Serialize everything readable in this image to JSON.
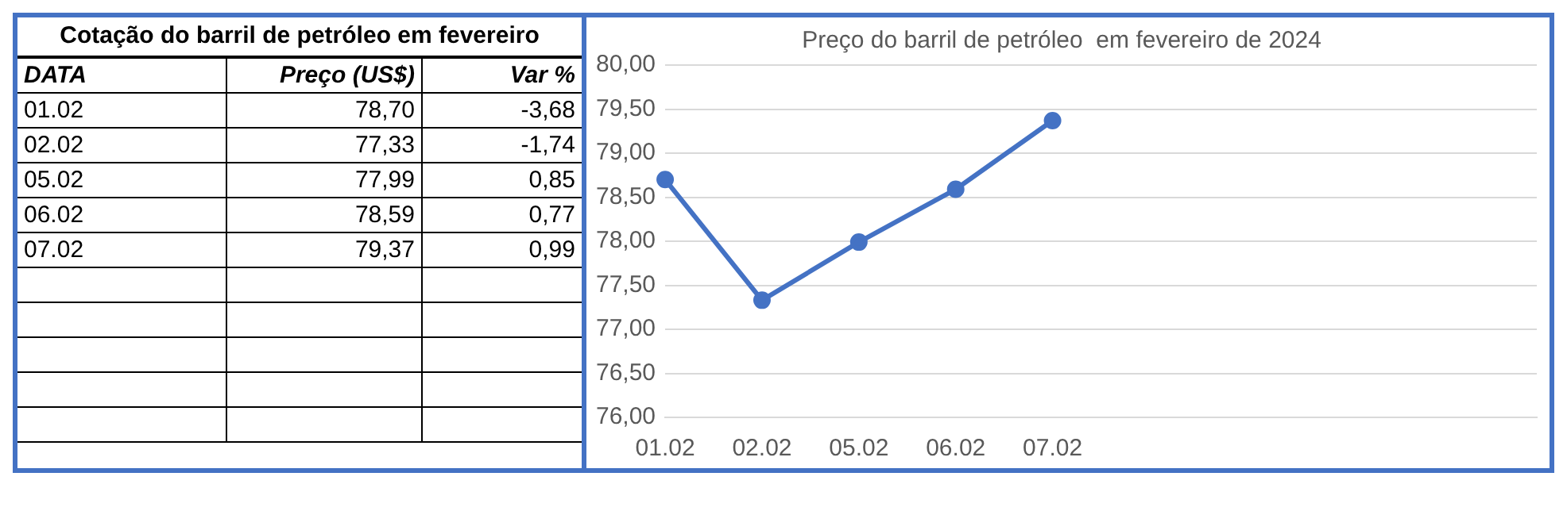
{
  "chart_data": [
    {
      "type": "other",
      "title": "Cotação do barril de petróleo em fevereiro",
      "annotations": [
        "DATA",
        "Preço (US$)",
        "Var %",
        "01.02",
        "78,70",
        "-3,68",
        "02.02",
        "77,33",
        "-1,74",
        "05.02",
        "77,99",
        "0,85",
        "06.02",
        "78,59",
        "0,77",
        "07.02",
        "79,37",
        "0,99"
      ]
    },
    {
      "type": "line",
      "title": "Preço do barril de petróleo  em fevereiro de 2024",
      "categories": [
        "01.02",
        "02.02",
        "05.02",
        "06.02",
        "07.02",
        null,
        null,
        null,
        null,
        null
      ],
      "series": [
        {
          "color": "#4472c4",
          "values": [
            78.7,
            77.33,
            77.99,
            78.59,
            79.37,
            null,
            null,
            null,
            null,
            null
          ]
        }
      ],
      "ylim": [
        76,
        80
      ],
      "yticks": [
        {
          "value": 76,
          "label": "76,00"
        },
        {
          "value": 76.5,
          "label": "76,50"
        },
        {
          "value": 77,
          "label": "77,00"
        },
        {
          "value": 77.5,
          "label": "77,50"
        },
        {
          "value": 78,
          "label": "78,00"
        },
        {
          "value": 78.5,
          "label": "78,50"
        },
        {
          "value": 79,
          "label": "79,00"
        },
        {
          "value": 79.5,
          "label": "79,50"
        },
        {
          "value": 80,
          "label": "80,00"
        }
      ],
      "grid": "y",
      "marker": "circle",
      "line_style": "solid",
      "legend": false
    }
  ]
}
